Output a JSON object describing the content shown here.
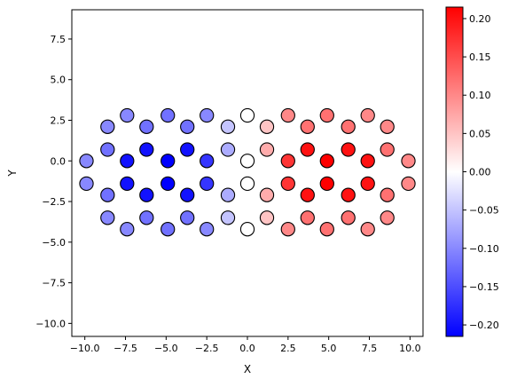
{
  "chart_data": {
    "type": "scatter",
    "title": "",
    "xlabel": "X",
    "ylabel": "Y",
    "xlim": [
      -10.8,
      10.8
    ],
    "ylim": [
      -10.8,
      9.3
    ],
    "xticks": [
      -10.0,
      -7.5,
      -5.0,
      -2.5,
      0.0,
      2.5,
      5.0,
      7.5,
      10.0
    ],
    "xtick_labels": [
      "−10.0",
      "−7.5",
      "−5.0",
      "−2.5",
      "0.0",
      "2.5",
      "5.0",
      "7.5",
      "10.0"
    ],
    "yticks": [
      -10.0,
      -7.5,
      -5.0,
      -2.5,
      0.0,
      2.5,
      5.0,
      7.5
    ],
    "ytick_labels": [
      "−10.0",
      "−7.5",
      "−5.0",
      "−2.5",
      "0.0",
      "2.5",
      "5.0",
      "7.5"
    ],
    "grid": false,
    "colormap": "bwr",
    "colorbar": {
      "vmin": -0.215,
      "vmax": 0.215,
      "ticks": [
        -0.2,
        -0.15,
        -0.1,
        -0.05,
        0.0,
        0.05,
        0.1,
        0.15,
        0.2
      ],
      "tick_labels": [
        "−0.20",
        "−0.15",
        "−0.10",
        "−0.05",
        "0.00",
        "0.05",
        "0.10",
        "0.15",
        "0.20"
      ]
    },
    "points": [
      {
        "x": -9.9,
        "y": 0.0,
        "v": -0.1
      },
      {
        "x": -9.9,
        "y": -1.4,
        "v": -0.1
      },
      {
        "x": -8.6,
        "y": 2.1,
        "v": -0.1
      },
      {
        "x": -8.6,
        "y": 0.7,
        "v": -0.12
      },
      {
        "x": -8.6,
        "y": -2.1,
        "v": -0.12
      },
      {
        "x": -8.6,
        "y": -3.5,
        "v": -0.1
      },
      {
        "x": -7.4,
        "y": 2.8,
        "v": -0.1
      },
      {
        "x": -7.4,
        "y": 0.0,
        "v": -0.2
      },
      {
        "x": -7.4,
        "y": -1.4,
        "v": -0.2
      },
      {
        "x": -7.4,
        "y": -4.2,
        "v": -0.1
      },
      {
        "x": -6.2,
        "y": 2.1,
        "v": -0.12
      },
      {
        "x": -6.2,
        "y": 0.7,
        "v": -0.2
      },
      {
        "x": -6.2,
        "y": -2.1,
        "v": -0.2
      },
      {
        "x": -6.2,
        "y": -3.5,
        "v": -0.12
      },
      {
        "x": -4.9,
        "y": 2.8,
        "v": -0.12
      },
      {
        "x": -4.9,
        "y": 0.0,
        "v": -0.215
      },
      {
        "x": -4.9,
        "y": -1.4,
        "v": -0.215
      },
      {
        "x": -4.9,
        "y": -4.2,
        "v": -0.12
      },
      {
        "x": -3.7,
        "y": 2.1,
        "v": -0.12
      },
      {
        "x": -3.7,
        "y": 0.7,
        "v": -0.2
      },
      {
        "x": -3.7,
        "y": -2.1,
        "v": -0.2
      },
      {
        "x": -3.7,
        "y": -3.5,
        "v": -0.12
      },
      {
        "x": -2.5,
        "y": 2.8,
        "v": -0.1
      },
      {
        "x": -2.5,
        "y": 0.0,
        "v": -0.17
      },
      {
        "x": -2.5,
        "y": -1.4,
        "v": -0.17
      },
      {
        "x": -2.5,
        "y": -4.2,
        "v": -0.1
      },
      {
        "x": -1.2,
        "y": 2.1,
        "v": -0.05
      },
      {
        "x": -1.2,
        "y": 0.7,
        "v": -0.07
      },
      {
        "x": -1.2,
        "y": -2.1,
        "v": -0.07
      },
      {
        "x": -1.2,
        "y": -3.5,
        "v": -0.05
      },
      {
        "x": 0.0,
        "y": 2.8,
        "v": 0.0
      },
      {
        "x": 0.0,
        "y": 0.0,
        "v": 0.0
      },
      {
        "x": 0.0,
        "y": -1.4,
        "v": 0.0
      },
      {
        "x": 0.0,
        "y": -4.2,
        "v": 0.0
      },
      {
        "x": 1.2,
        "y": 2.1,
        "v": 0.05
      },
      {
        "x": 1.2,
        "y": 0.7,
        "v": 0.07
      },
      {
        "x": 1.2,
        "y": -2.1,
        "v": 0.07
      },
      {
        "x": 1.2,
        "y": -3.5,
        "v": 0.05
      },
      {
        "x": 2.5,
        "y": 2.8,
        "v": 0.1
      },
      {
        "x": 2.5,
        "y": 0.0,
        "v": 0.17
      },
      {
        "x": 2.5,
        "y": -1.4,
        "v": 0.17
      },
      {
        "x": 2.5,
        "y": -4.2,
        "v": 0.1
      },
      {
        "x": 3.7,
        "y": 2.1,
        "v": 0.12
      },
      {
        "x": 3.7,
        "y": 0.7,
        "v": 0.2
      },
      {
        "x": 3.7,
        "y": -2.1,
        "v": 0.2
      },
      {
        "x": 3.7,
        "y": -3.5,
        "v": 0.12
      },
      {
        "x": 4.9,
        "y": 2.8,
        "v": 0.12
      },
      {
        "x": 4.9,
        "y": 0.0,
        "v": 0.215
      },
      {
        "x": 4.9,
        "y": -1.4,
        "v": 0.215
      },
      {
        "x": 4.9,
        "y": -4.2,
        "v": 0.12
      },
      {
        "x": 6.2,
        "y": 2.1,
        "v": 0.12
      },
      {
        "x": 6.2,
        "y": 0.7,
        "v": 0.2
      },
      {
        "x": 6.2,
        "y": -2.1,
        "v": 0.2
      },
      {
        "x": 6.2,
        "y": -3.5,
        "v": 0.12
      },
      {
        "x": 7.4,
        "y": 2.8,
        "v": 0.1
      },
      {
        "x": 7.4,
        "y": 0.0,
        "v": 0.2
      },
      {
        "x": 7.4,
        "y": -1.4,
        "v": 0.2
      },
      {
        "x": 7.4,
        "y": -4.2,
        "v": 0.1
      },
      {
        "x": 8.6,
        "y": 2.1,
        "v": 0.1
      },
      {
        "x": 8.6,
        "y": 0.7,
        "v": 0.12
      },
      {
        "x": 8.6,
        "y": -2.1,
        "v": 0.12
      },
      {
        "x": 8.6,
        "y": -3.5,
        "v": 0.1
      },
      {
        "x": 9.9,
        "y": 0.0,
        "v": 0.1
      },
      {
        "x": 9.9,
        "y": -1.4,
        "v": 0.1
      }
    ]
  }
}
